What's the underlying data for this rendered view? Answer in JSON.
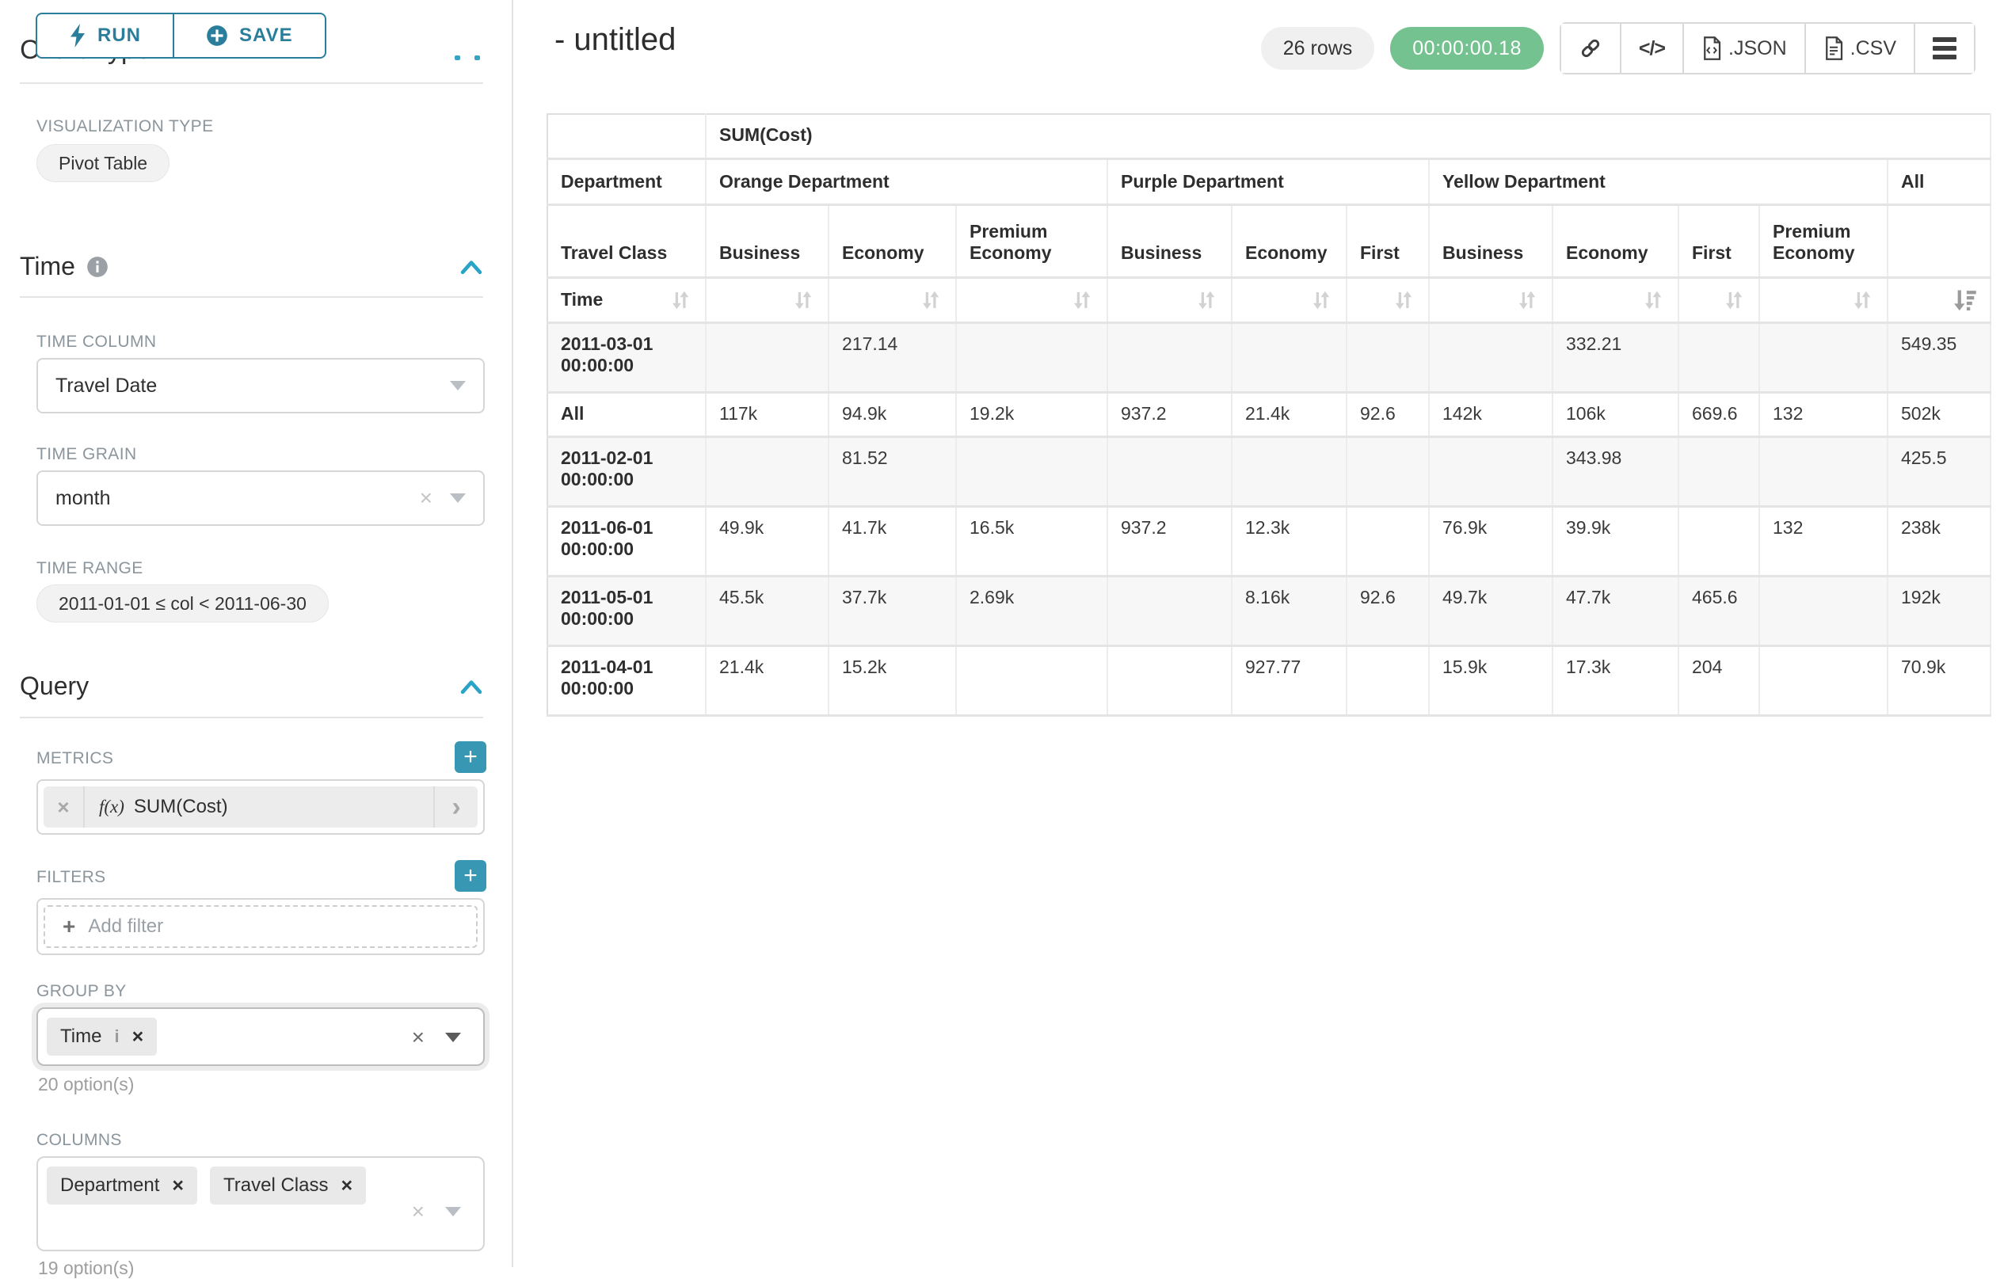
{
  "controls_panel": {
    "run_button": "RUN",
    "save_button": "SAVE",
    "section_chart_type": "Chart Type",
    "visualization_type": {
      "label": "VISUALIZATION TYPE",
      "value": "Pivot Table"
    },
    "time_section": {
      "title": "Time",
      "time_column": {
        "label": "TIME COLUMN",
        "value": "Travel Date"
      },
      "time_grain": {
        "label": "TIME GRAIN",
        "value": "month"
      },
      "time_range": {
        "label": "TIME RANGE",
        "value": "2011-01-01 ≤ col < 2011-06-30"
      }
    },
    "query_section": {
      "title": "Query",
      "metrics": {
        "label": "METRICS",
        "prefix": "f(x)",
        "value": "SUM(Cost)"
      },
      "filters": {
        "label": "FILTERS",
        "placeholder": "Add filter"
      },
      "group_by": {
        "label": "GROUP BY",
        "values": [
          "Time"
        ],
        "options_hint": "20 option(s)"
      },
      "columns": {
        "label": "COLUMNS",
        "values": [
          "Department",
          "Travel Class"
        ],
        "options_hint": "19 option(s)"
      }
    }
  },
  "header": {
    "title": "- untitled",
    "row_count": "26 rows",
    "query_time": "00:00:00.18",
    "export_json_label": ".JSON",
    "export_csv_label": ".CSV",
    "code_glyph": "</>"
  },
  "icons": {
    "run": "lightning-icon",
    "save": "plus-circle-icon",
    "time_info": "info-circle-icon",
    "collapse": "chevron-up-icon",
    "share": "link-icon",
    "embed": "code-icon",
    "menu": "hamburger-icon",
    "sort_inactive": "sort-arrows-icon",
    "sort_active": "sort-desc-icon"
  },
  "colors": {
    "accent_teal": "#2a7e9b",
    "add_button_teal": "#3897b3",
    "chevron_teal": "#29a3c6",
    "timer_green": "#74c28f",
    "pill_gray": "#f0f0f0",
    "stripe_gray": "#f7f7f7"
  },
  "pivot_table": {
    "metric_header": "SUM(Cost)",
    "row_dimension": "Department",
    "row_subdimension": "Travel Class",
    "time_label": "Time",
    "column_groups": [
      {
        "label": "Orange Department",
        "span": 3
      },
      {
        "label": "Purple Department",
        "span": 3
      },
      {
        "label": "Yellow Department",
        "span": 4
      },
      {
        "label": "All",
        "span": 1
      }
    ],
    "sub_columns": [
      "Business",
      "Economy",
      "Premium Economy",
      "Business",
      "Economy",
      "First",
      "Business",
      "Economy",
      "First",
      "Premium Economy",
      ""
    ],
    "rows": [
      {
        "label": "2011-03-01 00:00:00",
        "values": [
          "",
          "217.14",
          "",
          "",
          "",
          "",
          "",
          "332.21",
          "",
          "",
          "549.35"
        ]
      },
      {
        "label": "All",
        "values": [
          "117k",
          "94.9k",
          "19.2k",
          "937.2",
          "21.4k",
          "92.6",
          "142k",
          "106k",
          "669.6",
          "132",
          "502k"
        ]
      },
      {
        "label": "2011-02-01 00:00:00",
        "values": [
          "",
          "81.52",
          "",
          "",
          "",
          "",
          "",
          "343.98",
          "",
          "",
          "425.5"
        ]
      },
      {
        "label": "2011-06-01 00:00:00",
        "values": [
          "49.9k",
          "41.7k",
          "16.5k",
          "937.2",
          "12.3k",
          "",
          "76.9k",
          "39.9k",
          "",
          "132",
          "238k"
        ]
      },
      {
        "label": "2011-05-01 00:00:00",
        "values": [
          "45.5k",
          "37.7k",
          "2.69k",
          "",
          "8.16k",
          "92.6",
          "49.7k",
          "47.7k",
          "465.6",
          "",
          "192k"
        ]
      },
      {
        "label": "2011-04-01 00:00:00",
        "values": [
          "21.4k",
          "15.2k",
          "",
          "",
          "927.77",
          "",
          "15.9k",
          "17.3k",
          "204",
          "",
          "70.9k"
        ]
      }
    ]
  }
}
